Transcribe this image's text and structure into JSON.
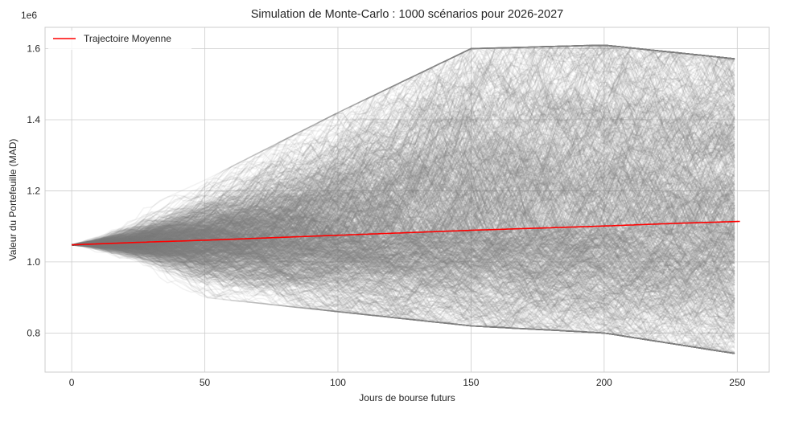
{
  "chart_data": {
    "type": "line",
    "title": "Simulation de Monte-Carlo : 1000 scénarios pour 2026-2027",
    "xlabel": "Jours de bourse futurs",
    "ylabel": "Valeur du Portefeuille (MAD)",
    "y_offset_label": "1e6",
    "xlim": [
      -10,
      262
    ],
    "ylim": [
      690000,
      1660000
    ],
    "x_ticks": [
      0,
      50,
      100,
      150,
      200,
      250
    ],
    "x_tick_labels": [
      "0",
      "50",
      "100",
      "150",
      "200",
      "250"
    ],
    "y_ticks": [
      800000,
      1000000,
      1200000,
      1400000,
      1600000
    ],
    "y_tick_labels": [
      "0.8",
      "1.0",
      "1.2",
      "1.4",
      "1.6"
    ],
    "grid": true,
    "legend_position": "top-left",
    "n_days": 252,
    "n_scenarios": 1000,
    "scenario_color": "#808080",
    "mean_color": "#ff0000",
    "series": [
      {
        "name": "Trajectoire Moyenne",
        "color": "#ff0000",
        "x": [
          0,
          25,
          50,
          75,
          100,
          125,
          150,
          175,
          200,
          225,
          251
        ],
        "y": [
          1048000,
          1055000,
          1061000,
          1068000,
          1075000,
          1082000,
          1089000,
          1095000,
          1101000,
          1108000,
          1114000
        ]
      }
    ],
    "scenario_envelope": {
      "x": [
        0,
        50,
        100,
        150,
        200,
        251
      ],
      "y_min": [
        1040000,
        900000,
        860000,
        820000,
        800000,
        740000
      ],
      "y_max": [
        1060000,
        1230000,
        1420000,
        1600000,
        1610000,
        1570000
      ]
    }
  }
}
